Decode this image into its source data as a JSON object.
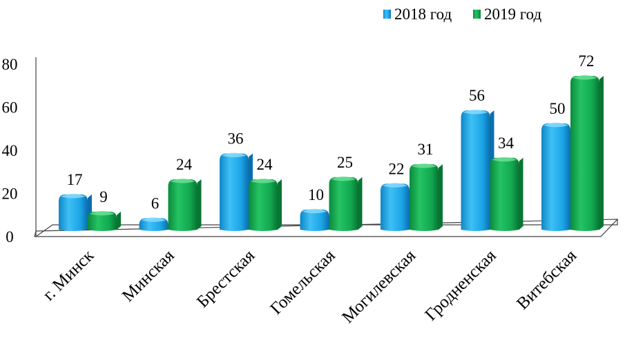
{
  "chart_data": {
    "type": "bar",
    "style": "3d-clustered-column",
    "categories": [
      "г. Минск",
      "Минская",
      "Брестская",
      "Гомельская",
      "Могилевская",
      "Гродненская",
      "Витебская"
    ],
    "series": [
      {
        "name": "2018 год",
        "values": [
          17,
          6,
          36,
          10,
          22,
          56,
          50
        ]
      },
      {
        "name": "2019 год",
        "values": [
          9,
          24,
          24,
          25,
          31,
          34,
          72
        ]
      }
    ],
    "ylim": [
      0,
      80
    ],
    "yticks": [
      0,
      20,
      40,
      60,
      80
    ],
    "title": "",
    "xlabel": "",
    "ylabel": "",
    "legend_position": "top-right",
    "grid": false,
    "colors": {
      "series1_front": "#1aa3e6",
      "series1_light": "#8fdcff",
      "series1_dark": "#0b6fae",
      "series2_front": "#12a850",
      "series2_light": "#6fe29a",
      "series2_dark": "#087533",
      "axis": "#404040",
      "floor": "#ffffff"
    }
  }
}
